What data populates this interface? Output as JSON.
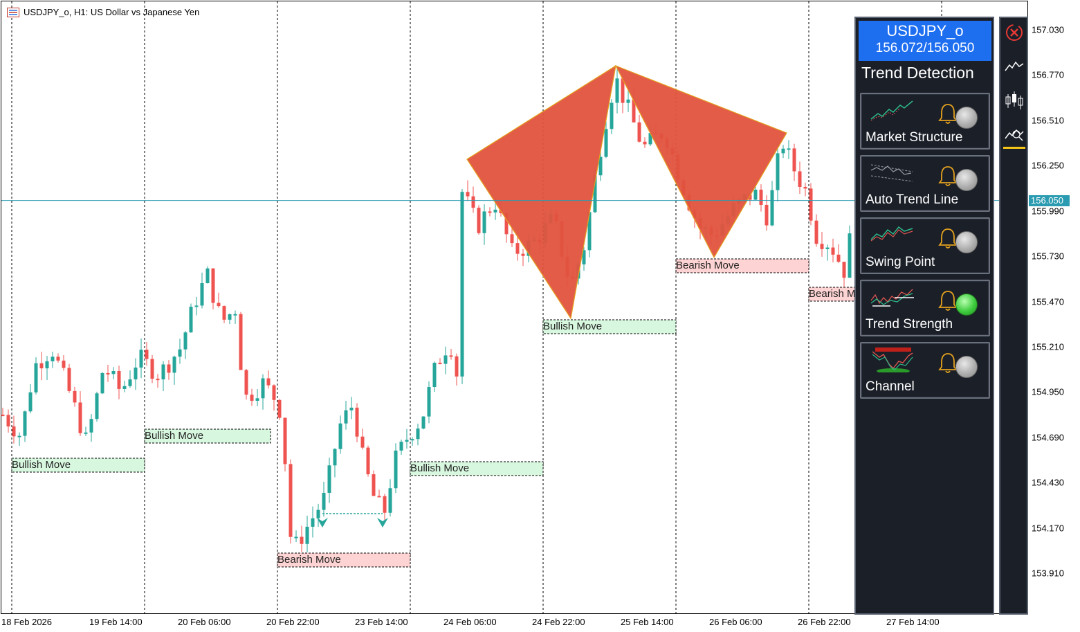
{
  "title": "USDJPY_o, H1:  US Dollar vs Japanese Yen",
  "price_axis": {
    "labels": [
      "157.030",
      "156.770",
      "156.510",
      "156.250",
      "155.990",
      "155.730",
      "155.470",
      "155.210",
      "154.950",
      "154.690",
      "154.430",
      "154.170",
      "153.910"
    ],
    "current": "156.050"
  },
  "time_axis": {
    "labels": [
      "18 Feb 2026",
      "19 Feb 14:00",
      "20 Feb 06:00",
      "20 Feb 22:00",
      "23 Feb 14:00",
      "24 Feb 06:00",
      "24 Feb 22:00",
      "25 Feb 14:00",
      "26 Feb 06:00",
      "26 Feb 22:00",
      "27 Feb 14:00"
    ]
  },
  "zones": [
    {
      "label": "Bullish Move",
      "type": "bull"
    },
    {
      "label": "Bullish Move",
      "type": "bull"
    },
    {
      "label": "Bearish Move",
      "type": "bear"
    },
    {
      "label": "Bullish Move",
      "type": "bull"
    },
    {
      "label": "Bullish Move",
      "type": "bull"
    },
    {
      "label": "Bearish Move",
      "type": "bear"
    },
    {
      "label": "Bearish M",
      "type": "bear"
    }
  ],
  "colors": {
    "bull": "#26a69a",
    "bear": "#ef5350",
    "pattern": "#e0533e",
    "current_line": "#2a9bb0",
    "panel_bg": "#1b1f28",
    "header_bg": "#1e6ef0"
  },
  "panel": {
    "symbol": "USDJPY_o",
    "bidask": "156.072/156.050",
    "title": "Trend Detection",
    "cards": [
      {
        "label": "Market Structure",
        "icon": "market-structure-icon",
        "active": false
      },
      {
        "label": "Auto Trend Line",
        "icon": "trend-line-icon",
        "active": false
      },
      {
        "label": "Swing Point",
        "icon": "swing-point-icon",
        "active": false
      },
      {
        "label": "Trend Strength",
        "icon": "trend-strength-icon",
        "active": true
      },
      {
        "label": "Channel",
        "icon": "channel-icon",
        "active": false
      }
    ]
  },
  "toolbar": [
    "close-icon",
    "line-chart-icon",
    "candlestick-icon",
    "indicator-icon"
  ]
}
